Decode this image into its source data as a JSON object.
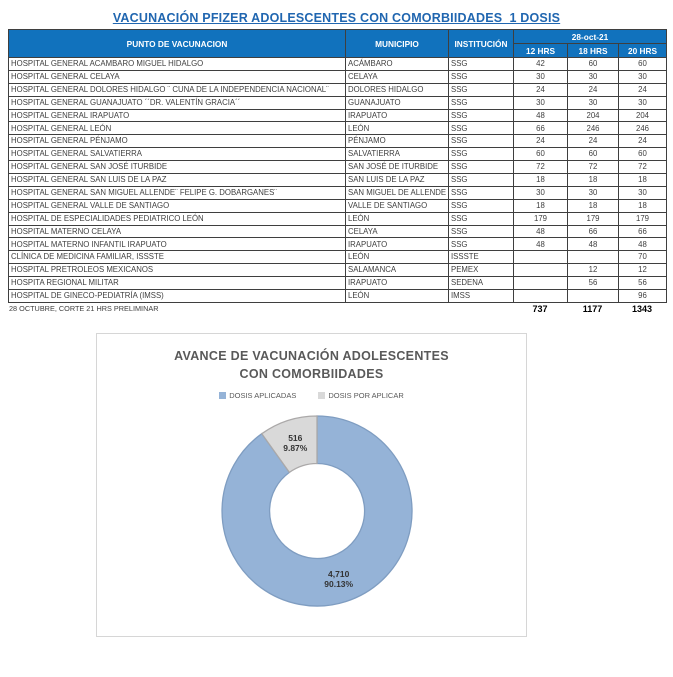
{
  "title": "VACUNACIÓN PFIZER ADOLESCENTES CON COMORBIIDADES_1 DOSIS",
  "table": {
    "headers": {
      "punto": "PUNTO DE VACUNACION",
      "municipio": "MUNICIPIO",
      "institucion": "INSTITUCIÓN",
      "date": "28-oct-21",
      "h12": "12 HRS",
      "h18": "18 HRS",
      "h20": "20 HRS"
    },
    "rows": [
      {
        "punto": "HOSPITAL GENERAL ACAMBARO MIGUEL HIDALGO",
        "municipio": "ACÁMBARO",
        "institucion": "SSG",
        "h12": "42",
        "h18": "60",
        "h20": "60"
      },
      {
        "punto": "HOSPITAL GENERAL CELAYA",
        "municipio": "CELAYA",
        "institucion": "SSG",
        "h12": "30",
        "h18": "30",
        "h20": "30"
      },
      {
        "punto": "HOSPITAL GENERAL DOLORES HIDALGO ¨ CUNA DE LA INDEPENDENCIA NACIONAL¨",
        "municipio": "DOLORES HIDALGO",
        "institucion": "SSG",
        "h12": "24",
        "h18": "24",
        "h20": "24"
      },
      {
        "punto": "HOSPITAL GENERAL GUANAJUATO ´´DR. VALENTÍN GRACIA´´",
        "municipio": "GUANAJUATO",
        "institucion": "SSG",
        "h12": "30",
        "h18": "30",
        "h20": "30"
      },
      {
        "punto": "HOSPITAL GENERAL IRAPUATO",
        "municipio": "IRAPUATO",
        "institucion": "SSG",
        "h12": "48",
        "h18": "204",
        "h20": "204"
      },
      {
        "punto": "HOSPITAL GENERAL LEÓN",
        "municipio": "LEÓN",
        "institucion": "SSG",
        "h12": "66",
        "h18": "246",
        "h20": "246"
      },
      {
        "punto": "HOSPITAL GENERAL PÉNJAMO",
        "municipio": "PÉNJAMO",
        "institucion": "SSG",
        "h12": "24",
        "h18": "24",
        "h20": "24"
      },
      {
        "punto": "HOSPITAL GENERAL SALVATIERRA",
        "municipio": "SALVATIERRA",
        "institucion": "SSG",
        "h12": "60",
        "h18": "60",
        "h20": "60"
      },
      {
        "punto": "HOSPITAL GENERAL SAN JOSÉ ITURBIDE",
        "municipio": "SAN JOSÉ DE ITURBIDE",
        "institucion": "SSG",
        "h12": "72",
        "h18": "72",
        "h20": "72"
      },
      {
        "punto": "HOSPITAL GENERAL SAN LUIS DE LA PAZ",
        "municipio": "SAN LUIS DE LA PAZ",
        "institucion": "SSG",
        "h12": "18",
        "h18": "18",
        "h20": "18"
      },
      {
        "punto": "HOSPITAL GENERAL SAN MIGUEL ALLENDE¨ FELIPE G. DOBARGANES¨",
        "municipio": "SAN MIGUEL DE ALLENDE",
        "institucion": "SSG",
        "h12": "30",
        "h18": "30",
        "h20": "30"
      },
      {
        "punto": "HOSPITAL GENERAL VALLE DE SANTIAGO",
        "municipio": "VALLE DE SANTIAGO",
        "institucion": "SSG",
        "h12": "18",
        "h18": "18",
        "h20": "18"
      },
      {
        "punto": "HOSPITAL DE ESPECIALIDADES  PEDIATRICO LEÓN",
        "municipio": "LEÓN",
        "institucion": "SSG",
        "h12": "179",
        "h18": "179",
        "h20": "179"
      },
      {
        "punto": "HOSPITAL MATERNO CELAYA",
        "municipio": "CELAYA",
        "institucion": "SSG",
        "h12": "48",
        "h18": "66",
        "h20": "66"
      },
      {
        "punto": "HOSPITAL MATERNO INFANTIL IRAPUATO",
        "municipio": "IRAPUATO",
        "institucion": "SSG",
        "h12": "48",
        "h18": "48",
        "h20": "48"
      },
      {
        "punto": "CLÍNICA DE MEDICINA FAMILIAR, ISSSTE",
        "municipio": "LEÓN",
        "institucion": "ISSSTE",
        "h12": "",
        "h18": "",
        "h20": "70"
      },
      {
        "punto": "HOSPITAL PRETROLEOS MEXICANOS",
        "municipio": "SALAMANCA",
        "institucion": "PEMEX",
        "h12": "",
        "h18": "12",
        "h20": "12"
      },
      {
        "punto": "HOSPITA REGIONAL MILITAR",
        "municipio": "IRAPUATO",
        "institucion": "SEDENA",
        "h12": "",
        "h18": "56",
        "h20": "56"
      },
      {
        "punto": "HOSPITAL DE GINECO-PEDIATRÍA (IMSS)",
        "municipio": "LEÓN",
        "institucion": "IMSS",
        "h12": "",
        "h18": "",
        "h20": "96"
      }
    ],
    "totals": {
      "h12": "737",
      "h18": "1177",
      "h20": "1343"
    },
    "footnote": "28 OCTUBRE, CORTE 21 HRS PRELIMINAR"
  },
  "chart_data": {
    "type": "pie",
    "subtype": "donut",
    "title": "AVANCE DE VACUNACIÓN ADOLESCENTES CON COMORBIIDADES",
    "legend": [
      "DOSIS APLICADAS",
      "DOSIS POR APLICAR"
    ],
    "legend_position": "top",
    "categories": [
      "DOSIS APLICADAS",
      "DOSIS POR APLICAR"
    ],
    "values": [
      4710,
      516
    ],
    "percentages": [
      90.13,
      9.87
    ],
    "labels": [
      "4,710\n90.13%",
      "516\n9.87%"
    ],
    "colors": [
      "#95B3D7",
      "#D9D9D9"
    ],
    "stroke_colors": [
      "#7F9DC1",
      "#ABA9A9"
    ],
    "hole_ratio": 0.5,
    "start_angle_deg": 0
  },
  "colors": {
    "header_bg": "#1172BD",
    "header_text": "#FFFFFF",
    "title_blue": "#2066B0",
    "chart_gray_text": "#595959",
    "slice_blue": "#95B3D7",
    "slice_gray": "#D9D9D9"
  }
}
